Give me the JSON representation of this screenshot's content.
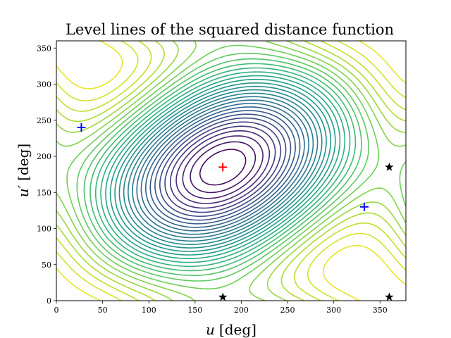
{
  "chart_data": {
    "type": "contour",
    "title": "Level lines of the squared distance function",
    "xlabel": {
      "var": "u",
      "unit": "[deg]"
    },
    "ylabel": {
      "var": "u′",
      "unit": "[deg]"
    },
    "xlim": [
      0,
      378
    ],
    "ylim": [
      0,
      360
    ],
    "xticks": [
      0,
      50,
      100,
      150,
      200,
      250,
      300,
      350
    ],
    "yticks": [
      0,
      50,
      100,
      150,
      200,
      250,
      300,
      350
    ],
    "colormap": "viridis",
    "levels": 32,
    "maximum": {
      "x": 180,
      "y": 185
    },
    "markers": [
      {
        "label": "max",
        "x": 180,
        "y": 185,
        "shape": "plus",
        "color": "#ff0000"
      },
      {
        "label": "min",
        "x": 27,
        "y": 240,
        "shape": "plus",
        "color": "#0000ff"
      },
      {
        "label": "min",
        "x": 333,
        "y": 130,
        "shape": "plus",
        "color": "#0000ff"
      },
      {
        "label": "saddle",
        "x": 180,
        "y": 5,
        "shape": "star",
        "color": "#000000"
      },
      {
        "label": "saddle",
        "x": 360,
        "y": 5,
        "shape": "star",
        "color": "#000000"
      },
      {
        "label": "saddle",
        "x": 360,
        "y": 185,
        "shape": "star",
        "color": "#000000"
      }
    ]
  }
}
